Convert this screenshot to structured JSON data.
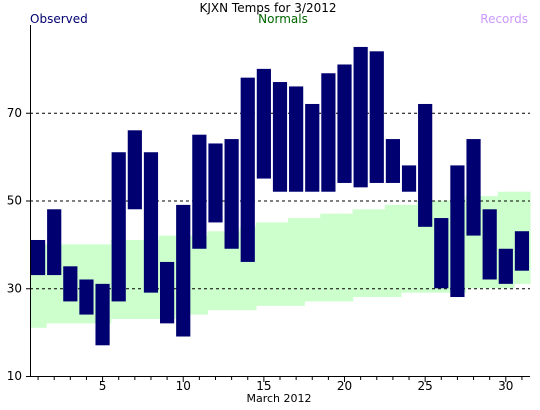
{
  "chart_data": {
    "type": "bar",
    "title": "KJXN Temps for  3/2012",
    "xlabel": "March 2012",
    "ylabel": "",
    "legend": {
      "observed": "Observed",
      "normals": "Normals",
      "records": "Records"
    },
    "colors": {
      "observed": "#000070",
      "normals_fill": "#ccffcc",
      "normals_text": "#006600",
      "records_text": "#cc99ff",
      "gridline": "#000000"
    },
    "ylim": [
      10,
      90
    ],
    "yticks": [
      10,
      30,
      50,
      70
    ],
    "xlim": [
      0.5,
      31.5
    ],
    "xticks": [
      5,
      10,
      15,
      20,
      25,
      30
    ],
    "grid": "horizontal dashed at 30, 50, 70",
    "days": [
      1,
      2,
      3,
      4,
      5,
      6,
      7,
      8,
      9,
      10,
      11,
      12,
      13,
      14,
      15,
      16,
      17,
      18,
      19,
      20,
      21,
      22,
      23,
      24,
      25,
      26,
      27,
      28,
      29,
      30,
      31
    ],
    "normals": {
      "high": [
        40,
        40,
        40,
        40,
        40,
        41,
        41,
        41,
        42,
        42,
        42,
        43,
        43,
        44,
        45,
        45,
        46,
        46,
        47,
        47,
        48,
        48,
        49,
        49,
        50,
        50,
        50,
        51,
        51,
        52,
        52
      ],
      "low": [
        21,
        22,
        22,
        22,
        22,
        23,
        23,
        23,
        23,
        24,
        24,
        25,
        25,
        25,
        26,
        26,
        26,
        27,
        27,
        27,
        28,
        28,
        28,
        29,
        29,
        29,
        29,
        30,
        30,
        30,
        31
      ]
    },
    "series": [
      {
        "name": "Observed",
        "high": [
          41,
          48,
          35,
          32,
          31,
          61,
          66,
          61,
          36,
          49,
          65,
          63,
          64,
          78,
          80,
          77,
          76,
          72,
          79,
          81,
          85,
          84,
          64,
          58,
          72,
          46,
          58,
          64,
          48,
          39,
          43
        ],
        "low": [
          33,
          33,
          27,
          24,
          17,
          27,
          48,
          29,
          22,
          19,
          39,
          45,
          39,
          36,
          55,
          52,
          52,
          52,
          52,
          54,
          53,
          54,
          54,
          52,
          44,
          30,
          28,
          42,
          32,
          31,
          34
        ]
      }
    ]
  }
}
